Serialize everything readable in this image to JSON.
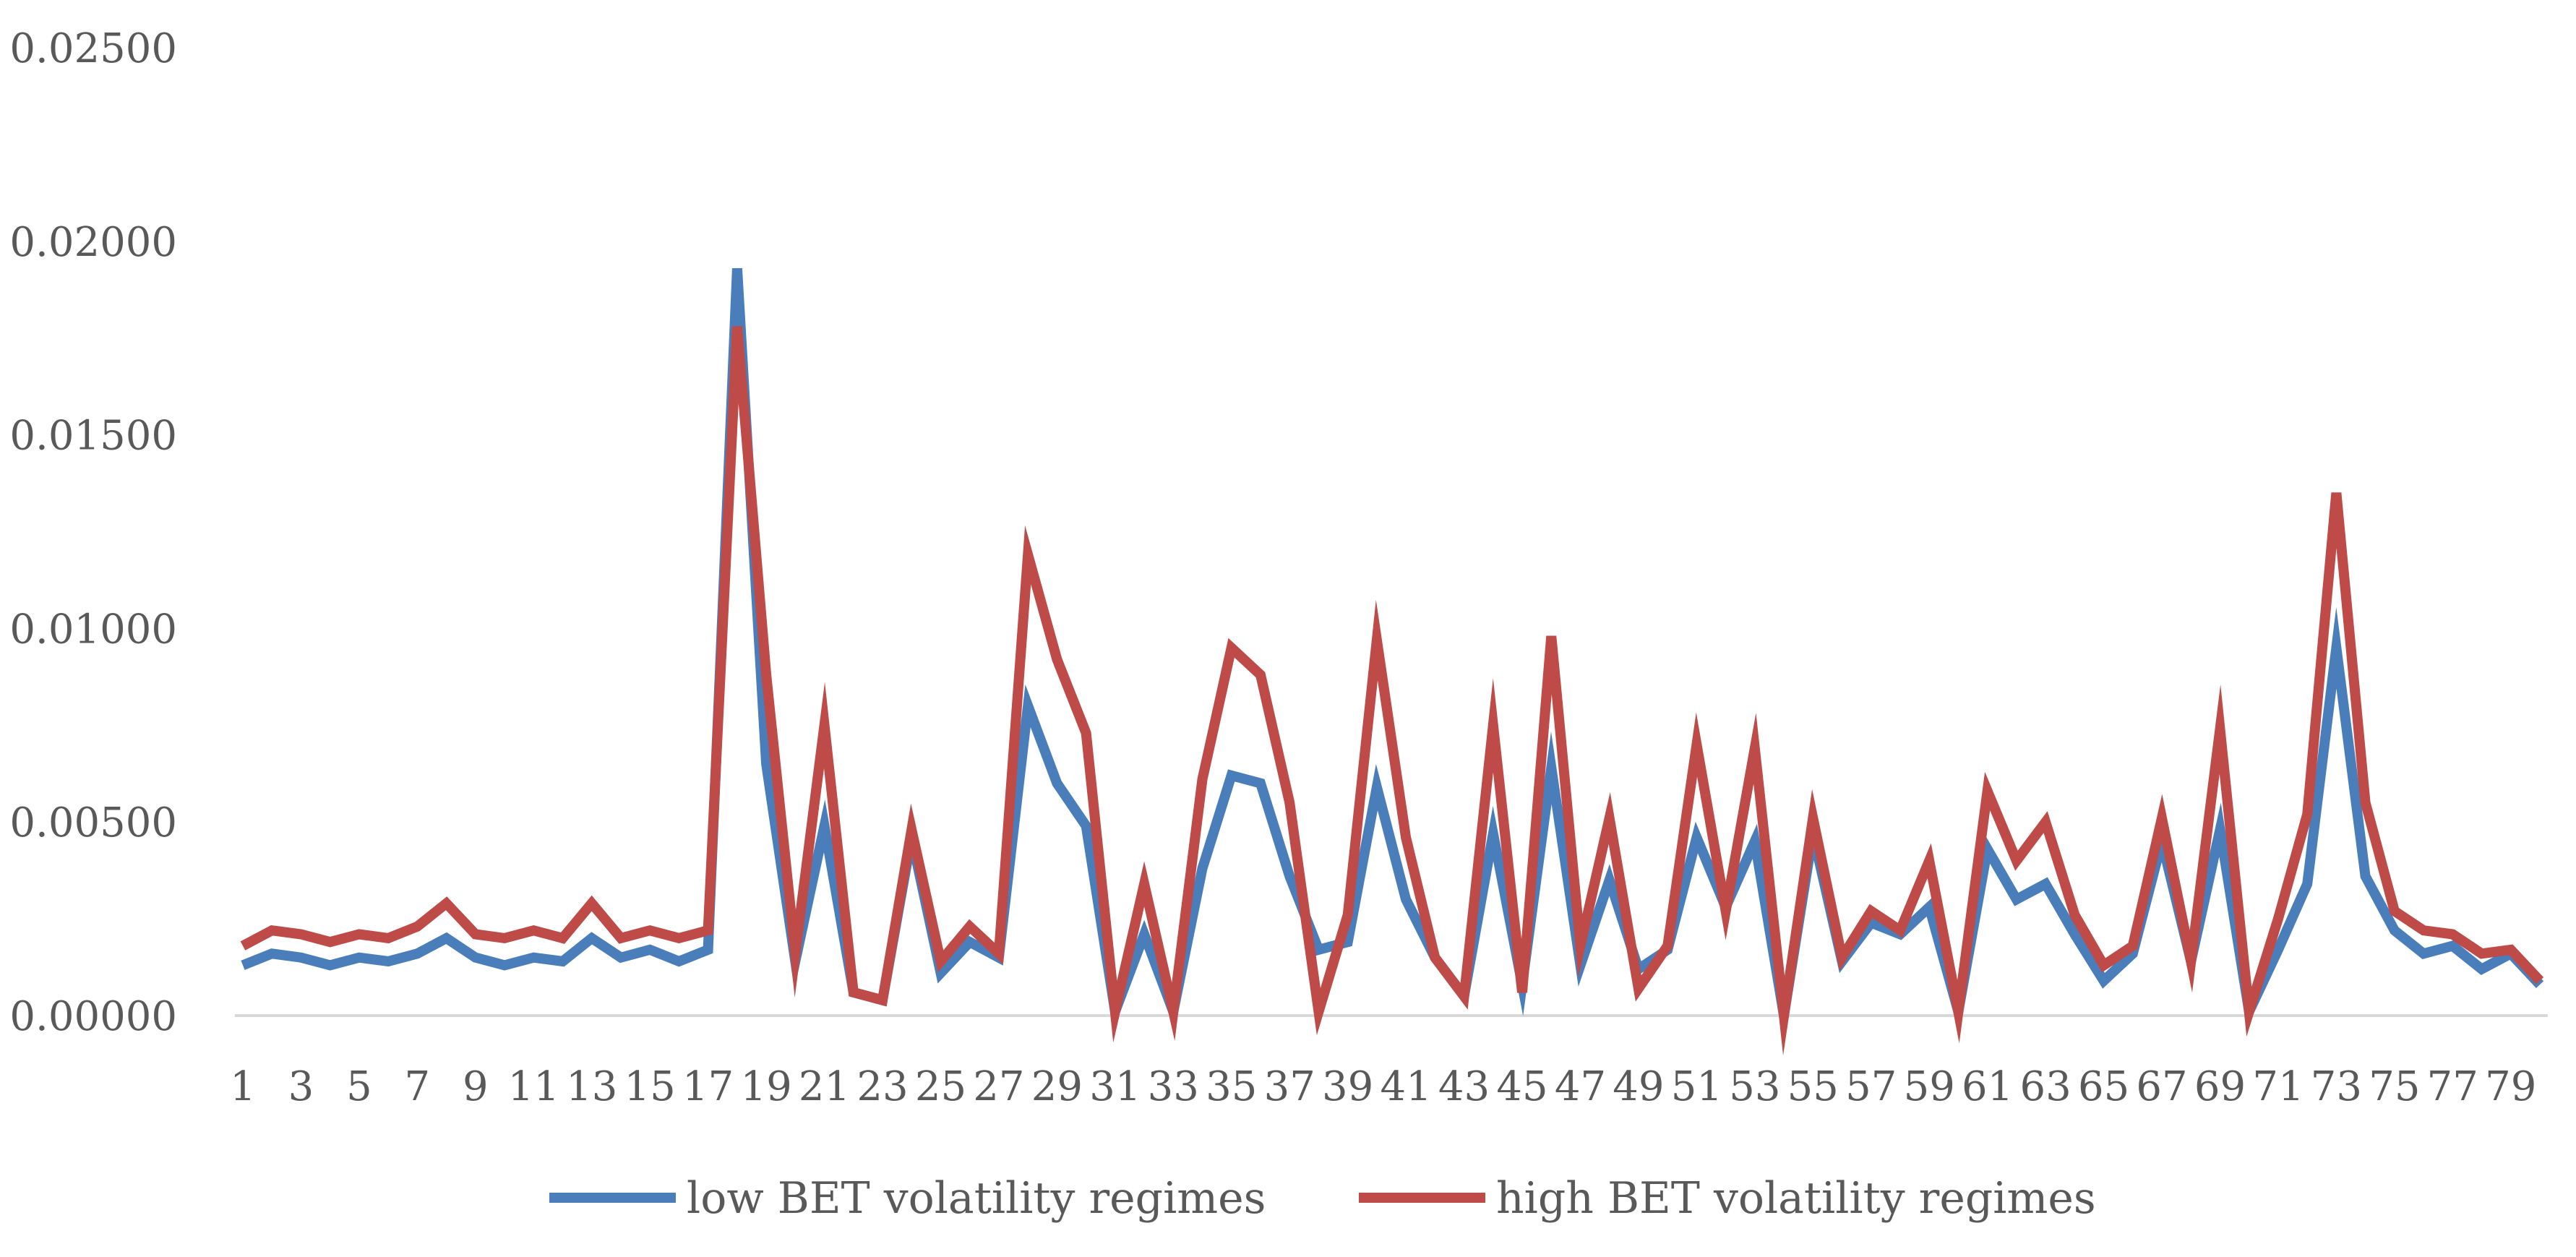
{
  "chart_data": {
    "type": "line",
    "title": "",
    "xlabel": "",
    "ylabel": "",
    "ylim": [
      0,
      0.025
    ],
    "grid": false,
    "legend_position": "bottom",
    "y_ticks": [
      "0.00000",
      "0.00500",
      "0.01000",
      "0.01500",
      "0.02000",
      "0.02500"
    ],
    "y_tick_values": [
      0,
      0.005,
      0.01,
      0.015,
      0.02,
      0.025
    ],
    "x_tick_labels": [
      "1",
      "3",
      "5",
      "7",
      "9",
      "11",
      "13",
      "15",
      "17",
      "19",
      "21",
      "23",
      "25",
      "27",
      "29",
      "31",
      "33",
      "35",
      "37",
      "39",
      "41",
      "43",
      "45",
      "47",
      "49",
      "51",
      "53",
      "55",
      "57",
      "59",
      "61",
      "63",
      "65",
      "67",
      "69",
      "71",
      "73",
      "75",
      "77",
      "79"
    ],
    "x": [
      1,
      2,
      3,
      4,
      5,
      6,
      7,
      8,
      9,
      10,
      11,
      12,
      13,
      14,
      15,
      16,
      17,
      18,
      19,
      20,
      21,
      22,
      23,
      24,
      25,
      26,
      27,
      28,
      29,
      30,
      31,
      32,
      33,
      34,
      35,
      36,
      37,
      38,
      39,
      40,
      41,
      42,
      43,
      44,
      45,
      46,
      47,
      48,
      49,
      50,
      51,
      52,
      53,
      54,
      55,
      56,
      57,
      58,
      59,
      60,
      61,
      62,
      63,
      64,
      65,
      66,
      67,
      68,
      69,
      70,
      71,
      72,
      73,
      74,
      75,
      76,
      77,
      78,
      79,
      80
    ],
    "series": [
      {
        "name": "low BET volatility regimes",
        "color": "#4a7ebb",
        "values": [
          0.0013,
          0.0016,
          0.0015,
          0.0013,
          0.0015,
          0.0014,
          0.0016,
          0.002,
          0.0015,
          0.0013,
          0.0015,
          0.0014,
          0.002,
          0.0015,
          0.0017,
          0.0014,
          0.0017,
          0.0193,
          0.0065,
          0.0014,
          0.0049,
          0.0006,
          0.0004,
          0.0046,
          0.0011,
          0.0019,
          0.0015,
          0.008,
          0.006,
          0.0049,
          0.0001,
          0.0021,
          0.0001,
          0.0038,
          0.0062,
          0.006,
          0.0036,
          0.0017,
          0.0019,
          0.0059,
          0.003,
          0.0015,
          0.0005,
          0.0047,
          0.0008,
          0.0064,
          0.0013,
          0.0035,
          0.0012,
          0.0017,
          0.0046,
          0.0028,
          0.0045,
          0.0,
          0.0047,
          0.0014,
          0.0024,
          0.0021,
          0.0028,
          0.0001,
          0.0043,
          0.003,
          0.0034,
          0.0021,
          0.0009,
          0.0016,
          0.0045,
          0.0014,
          0.0048,
          0.0001,
          0.0017,
          0.0034,
          0.0095,
          0.0036,
          0.0022,
          0.0016,
          0.0018,
          0.0012,
          0.0016,
          0.0008
        ]
      },
      {
        "name": "high BET volatility regimes",
        "color": "#be4b48",
        "values": [
          0.0018,
          0.0022,
          0.0021,
          0.0019,
          0.0021,
          0.002,
          0.0023,
          0.0029,
          0.0021,
          0.002,
          0.0022,
          0.002,
          0.0029,
          0.002,
          0.0022,
          0.002,
          0.0022,
          0.0178,
          0.0088,
          0.0016,
          0.0075,
          0.0006,
          0.0004,
          0.0048,
          0.0014,
          0.0023,
          0.0016,
          0.0119,
          0.0092,
          0.0073,
          0.0001,
          0.0034,
          0.0001,
          0.0061,
          0.0095,
          0.0088,
          0.0055,
          0.0001,
          0.0026,
          0.0097,
          0.0046,
          0.0015,
          0.0005,
          0.0075,
          0.0006,
          0.0098,
          0.0018,
          0.0051,
          0.0007,
          0.0018,
          0.007,
          0.0027,
          0.0069,
          0.0,
          0.0051,
          0.0015,
          0.0027,
          0.0022,
          0.004,
          0.0001,
          0.0058,
          0.004,
          0.005,
          0.0026,
          0.0013,
          0.0018,
          0.0051,
          0.0014,
          0.0074,
          0.0001,
          0.0025,
          0.0052,
          0.0135,
          0.0055,
          0.0027,
          0.0022,
          0.0021,
          0.0016,
          0.0017,
          0.0009
        ]
      }
    ]
  }
}
